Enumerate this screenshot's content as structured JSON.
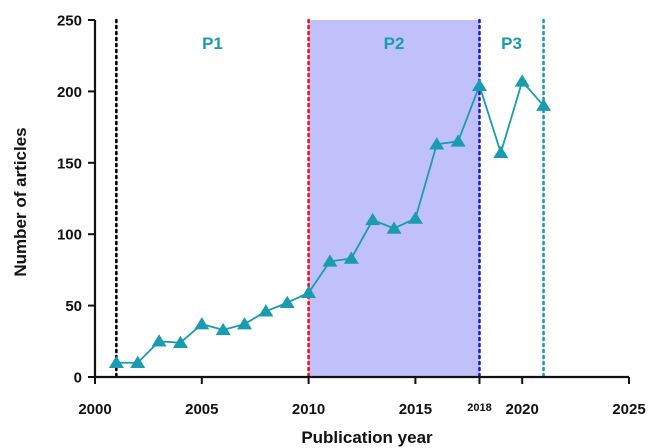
{
  "chart_data": {
    "type": "line",
    "xlabel": "Publication year",
    "ylabel": "Number of articles",
    "xlim": [
      2000,
      2025
    ],
    "ylim": [
      0,
      250
    ],
    "x_ticks": [
      "2000",
      "2005",
      "2010",
      "2015",
      "2018",
      "2020",
      "2025"
    ],
    "y_ticks": [
      "0",
      "50",
      "100",
      "150",
      "200",
      "250"
    ],
    "grid": false,
    "series": [
      {
        "color": "#1a9bb0",
        "marker": "triangle",
        "x": [
          2001,
          2002,
          2003,
          2004,
          2005,
          2006,
          2007,
          2008,
          2009,
          2010,
          2011,
          2012,
          2013,
          2014,
          2015,
          2016,
          2017,
          2018,
          2019,
          2020,
          2021
        ],
        "y": [
          10,
          10,
          25,
          24,
          37,
          33,
          37,
          46,
          52,
          59,
          81,
          83,
          110,
          104,
          111,
          163,
          165,
          204,
          157,
          207,
          190
        ]
      }
    ],
    "periods": [
      {
        "label": "P1",
        "start": 2001,
        "end": 2010,
        "label_color": "#1a9bb0"
      },
      {
        "label": "P2",
        "start": 2010,
        "end": 2018,
        "label_color": "#1a9bb0",
        "shaded": true,
        "shade_color": "#c0c0fb"
      },
      {
        "label": "P3",
        "start": 2018,
        "end": 2021,
        "label_color": "#1a9bb0"
      }
    ],
    "vlines": [
      {
        "x": 2001,
        "color": "#000000",
        "style": "dotted"
      },
      {
        "x": 2010,
        "color": "#e8141c",
        "style": "dotted"
      },
      {
        "x": 2018,
        "color": "#1a1adc",
        "style": "dotted"
      },
      {
        "x": 2021,
        "color": "#1a9bb0",
        "style": "dotted"
      }
    ]
  }
}
